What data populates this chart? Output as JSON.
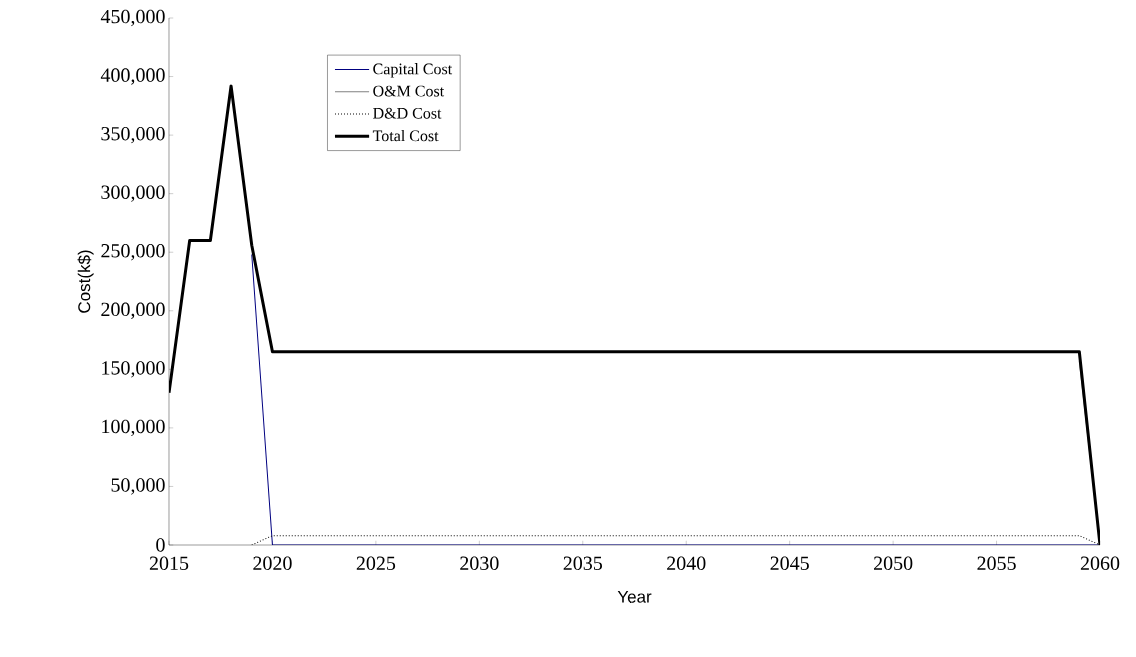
{
  "chart_data": {
    "type": "line",
    "xlabel": "Year",
    "ylabel": "Cost(k$)",
    "x": [
      2015,
      2016,
      2017,
      2018,
      2019,
      2020,
      2021,
      2022,
      2023,
      2024,
      2025,
      2026,
      2027,
      2028,
      2029,
      2030,
      2031,
      2032,
      2033,
      2034,
      2035,
      2036,
      2037,
      2038,
      2039,
      2040,
      2041,
      2042,
      2043,
      2044,
      2045,
      2046,
      2047,
      2048,
      2049,
      2050,
      2051,
      2052,
      2053,
      2054,
      2055,
      2056,
      2057,
      2058,
      2059,
      2060
    ],
    "series": [
      {
        "name": "Capital Cost",
        "color": "#000080",
        "line_style": "solid",
        "values": [
          null,
          null,
          null,
          null,
          248000,
          0,
          0,
          0,
          0,
          0,
          0,
          0,
          0,
          0,
          0,
          0,
          0,
          0,
          0,
          0,
          0,
          0,
          0,
          0,
          0,
          0,
          0,
          0,
          0,
          0,
          0,
          0,
          0,
          0,
          0,
          0,
          0,
          0,
          0,
          0,
          0,
          0,
          0,
          0,
          0,
          0
        ]
      },
      {
        "name": "O&M Cost",
        "color": "#808080",
        "line_style": "solid",
        "values": [
          null,
          null,
          null,
          null,
          null,
          null,
          null,
          null,
          null,
          null,
          null,
          null,
          null,
          null,
          null,
          null,
          null,
          null,
          null,
          null,
          null,
          null,
          null,
          null,
          null,
          null,
          null,
          null,
          null,
          null,
          null,
          null,
          null,
          null,
          null,
          null,
          null,
          null,
          null,
          null,
          null,
          null,
          null,
          null,
          157000,
          0
        ]
      },
      {
        "name": "D&D Cost",
        "color": "#000000",
        "line_style": "dotted",
        "values": [
          null,
          null,
          null,
          null,
          0,
          8000,
          8000,
          8000,
          8000,
          8000,
          8000,
          8000,
          8000,
          8000,
          8000,
          8000,
          8000,
          8000,
          8000,
          8000,
          8000,
          8000,
          8000,
          8000,
          8000,
          8000,
          8000,
          8000,
          8000,
          8000,
          8000,
          8000,
          8000,
          8000,
          8000,
          8000,
          8000,
          8000,
          8000,
          8000,
          8000,
          8000,
          8000,
          8000,
          8000,
          0
        ]
      },
      {
        "name": "Total Cost",
        "color": "#000000",
        "line_style": "solid",
        "values": [
          130000,
          260000,
          260000,
          392000,
          256000,
          165000,
          165000,
          165000,
          165000,
          165000,
          165000,
          165000,
          165000,
          165000,
          165000,
          165000,
          165000,
          165000,
          165000,
          165000,
          165000,
          165000,
          165000,
          165000,
          165000,
          165000,
          165000,
          165000,
          165000,
          165000,
          165000,
          165000,
          165000,
          165000,
          165000,
          165000,
          165000,
          165000,
          165000,
          165000,
          165000,
          165000,
          165000,
          165000,
          165000,
          0
        ]
      }
    ],
    "xlim": [
      2015,
      2060
    ],
    "xticks": [
      2015,
      2020,
      2025,
      2030,
      2035,
      2040,
      2045,
      2050,
      2055,
      2060
    ],
    "ylim": [
      0,
      450000
    ],
    "yticks": [
      0,
      {
        "value": 50000,
        "label": "50,000"
      },
      {
        "value": 100000,
        "label": "100,000"
      },
      {
        "value": 150000,
        "label": "150,000"
      },
      {
        "value": 200000,
        "label": "200,000"
      },
      {
        "value": 250000,
        "label": "250,000"
      },
      {
        "value": 300000,
        "label": "300,000"
      },
      {
        "value": 350000,
        "label": "350,000"
      },
      {
        "value": 400000,
        "label": "400,000"
      },
      {
        "value": 450000,
        "label": "450,000"
      }
    ],
    "grid": false,
    "legend": "top left",
    "marker": "none"
  }
}
